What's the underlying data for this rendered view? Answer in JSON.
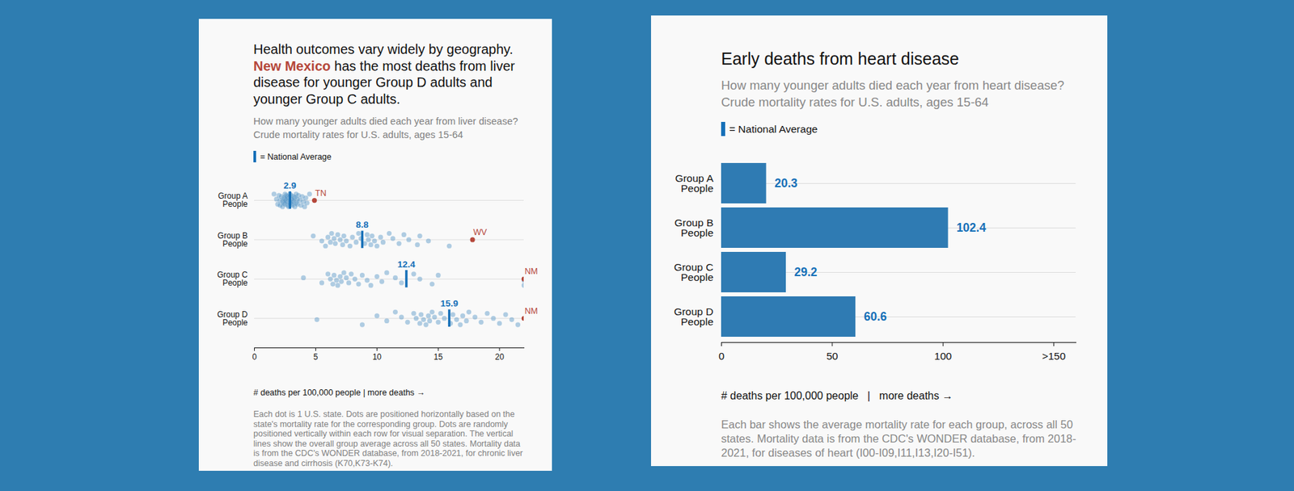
{
  "chart_data": [
    {
      "type": "strip",
      "title": "Health outcomes vary widely by geography. New Mexico has the most deaths from liver disease for younger Group D adults and younger Group C adults.",
      "title_highlight": "New Mexico",
      "subtitle": "How many younger adults died each year from liver disease? Crude mortality rates for U.S. adults, ages 15-64",
      "average_label": "= National Average",
      "categories": [
        "Group A\nPeople",
        "Group B\nPeople",
        "Group C\nPeople",
        "Group D\nPeople"
      ],
      "values": [
        [
          1.6,
          1.8,
          1.9,
          2.0,
          2.1,
          2.1,
          2.2,
          2.3,
          2.3,
          2.4,
          2.4,
          2.5,
          2.5,
          2.5,
          2.6,
          2.6,
          2.7,
          2.7,
          2.7,
          2.8,
          2.8,
          2.9,
          2.9,
          3.0,
          3.0,
          3.0,
          3.1,
          3.1,
          3.2,
          3.2,
          3.3,
          3.3,
          3.4,
          3.4,
          3.5,
          3.5,
          3.6,
          3.7,
          3.8,
          3.9,
          4.0,
          4.1,
          4.2,
          4.3,
          4.5
        ],
        [
          4.8,
          5.5,
          5.8,
          6.0,
          6.2,
          6.3,
          6.5,
          6.6,
          6.8,
          7.0,
          7.2,
          7.3,
          7.5,
          7.8,
          8.0,
          8.3,
          8.5,
          8.7,
          9.0,
          9.2,
          9.3,
          9.5,
          9.6,
          9.8,
          10.0,
          10.3,
          10.5,
          11.0,
          11.3,
          11.8,
          12.2,
          12.6,
          13.3,
          13.5,
          14.2,
          15.9
        ],
        [
          4.0,
          5.5,
          6.0,
          6.2,
          6.4,
          6.5,
          6.7,
          6.8,
          7.0,
          7.1,
          7.3,
          7.5,
          7.7,
          7.9,
          8.2,
          8.5,
          8.8,
          9.2,
          9.5,
          10.0,
          10.4,
          10.8,
          11.5,
          12.0,
          13.0,
          13.5,
          14.5,
          15.0,
          22,
          22
        ],
        [
          5.1,
          8.8,
          10.0,
          10.8,
          11.5,
          12.0,
          12.5,
          13.0,
          13.2,
          13.5,
          13.6,
          13.8,
          14.0,
          14.2,
          14.3,
          14.5,
          14.7,
          15.0,
          15.2,
          15.5,
          16.0,
          16.2,
          16.5,
          16.8,
          17.0,
          17.3,
          17.5,
          18.0,
          18.5,
          19.0,
          19.5,
          20.0,
          20.5,
          21.0,
          21.5
        ]
      ],
      "color": "#4a90c4",
      "averages": [
        2.9,
        8.8,
        12.4,
        15.9
      ],
      "data_labels": true,
      "highlights": [
        {
          "category": "Group A\nPeople",
          "label": "TN",
          "value": 4.9
        },
        {
          "category": "Group B\nPeople",
          "label": "WV",
          "value": 17.8
        },
        {
          "category": "Group C\nPeople",
          "label": "NM",
          "value": 22
        },
        {
          "category": "Group D\nPeople",
          "label": "NM",
          "value": 22
        }
      ],
      "xlim": [
        0,
        22
      ],
      "xticks": [
        0,
        5,
        10,
        15,
        20
      ],
      "xlabel": "# deaths per 100,000 people | more deaths →",
      "note": "Each dot is 1 U.S. state. Dots are positioned horizontally based on the state's mortality rate for the corresponding group. Dots are randomly positioned vertically within each row for visual separation. The vertical lines show the overall group average across all 50 states. Mortality data is from the CDC's WONDER database, from 2018-2021, for chronic liver disease and cirrhosis (K70,K73-K74)."
    },
    {
      "type": "bar",
      "orientation": "horizontal",
      "title": "Early deaths from heart disease",
      "subtitle": "How many younger adults died each year from heart disease? Crude mortality rates for U.S. adults, ages 15-64",
      "average_label": "= National Average",
      "categories": [
        "Group A\nPeople",
        "Group B\nPeople",
        "Group C\nPeople",
        "Group D\nPeople"
      ],
      "values": [
        20.3,
        102.4,
        29.2,
        60.6
      ],
      "color": "#2f7bb3",
      "data_labels": true,
      "xlim": [
        0,
        160
      ],
      "xticks": [
        0,
        50,
        100,
        {
          "value": 150,
          "label": ">150"
        }
      ],
      "xlabel": "# deaths per 100,000 people   |   more deaths →",
      "note": "Each bar shows the average mortality rate for each group, across all 50 states. Mortality data is from the CDC's WONDER database, from 2018-2021, for diseases of heart (I00-I09,I11,I13,I20-I51)."
    }
  ]
}
